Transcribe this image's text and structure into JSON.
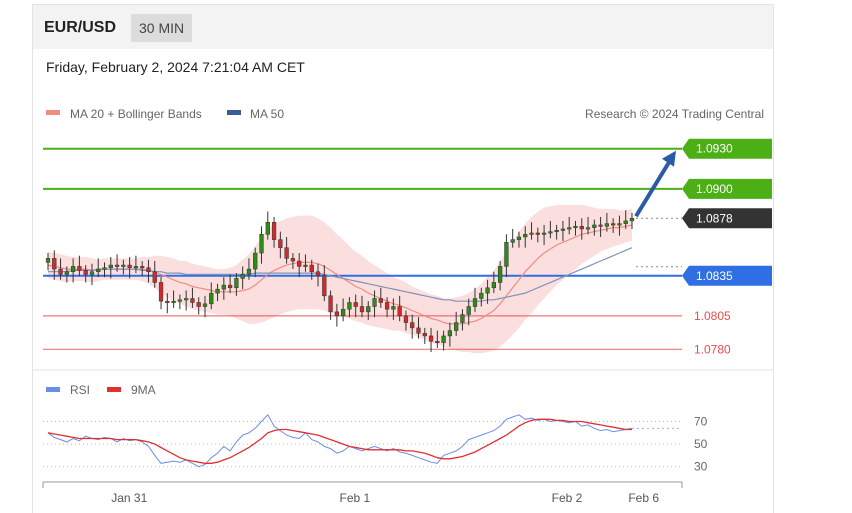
{
  "header": {
    "pair": "EUR/USD",
    "timeframe": "30 MIN",
    "datetime": "Friday, February 2, 2024 7:21:04 AM CET"
  },
  "chart_data": [
    {
      "type": "candlestick",
      "legend": [
        {
          "name": "MA 20 + Bollinger Bands",
          "color": "#f28b82"
        },
        {
          "name": "MA 50",
          "color": "#3b5b9a"
        }
      ],
      "source": "Research © 2024 Trading Central",
      "ylim": [
        1.0772,
        1.0944
      ],
      "levels": [
        {
          "value": 1.093,
          "label": "1.0930",
          "kind": "resistance",
          "color": "#4caf16"
        },
        {
          "value": 1.09,
          "label": "1.0900",
          "kind": "resistance",
          "color": "#4caf16"
        },
        {
          "value": 1.0878,
          "label": "1.0878",
          "kind": "last",
          "color": "#333333"
        },
        {
          "value": 1.0835,
          "label": "1.0835",
          "kind": "pivot",
          "color": "#2f6fe3"
        },
        {
          "value": 1.0805,
          "label": "1.0805",
          "kind": "support",
          "color": "#e64c4c"
        },
        {
          "value": 1.078,
          "label": "1.0780",
          "kind": "support",
          "color": "#e64c4c"
        }
      ],
      "x_ticks": [
        {
          "label": "Jan 31",
          "at": 0.135
        },
        {
          "label": "Feb 1",
          "at": 0.488
        },
        {
          "label": "Feb 2",
          "at": 0.82
        },
        {
          "label": "Feb 6",
          "at": 0.94
        }
      ],
      "closes": [
        1.0848,
        1.084,
        1.0836,
        1.0838,
        1.0842,
        1.0839,
        1.0836,
        1.0838,
        1.084,
        1.0841,
        1.0843,
        1.0842,
        1.0843,
        1.0841,
        1.0842,
        1.0841,
        1.0838,
        1.083,
        1.0816,
        1.0815,
        1.0816,
        1.0817,
        1.0818,
        1.0815,
        1.0812,
        1.0814,
        1.0822,
        1.0825,
        1.0828,
        1.0826,
        1.0833,
        1.0836,
        1.084,
        1.0852,
        1.0866,
        1.0875,
        1.0862,
        1.0856,
        1.0848,
        1.0846,
        1.0842,
        1.0843,
        1.0838,
        1.0835,
        1.082,
        1.0808,
        1.0805,
        1.081,
        1.0815,
        1.0812,
        1.0808,
        1.0812,
        1.0818,
        1.0815,
        1.081,
        1.0812,
        1.0805,
        1.08,
        1.0796,
        1.0792,
        1.079,
        1.0786,
        1.0785,
        1.079,
        1.0794,
        1.08,
        1.0806,
        1.0812,
        1.0818,
        1.0822,
        1.0826,
        1.083,
        1.0842,
        1.086,
        1.0862,
        1.0864,
        1.0866,
        1.0867,
        1.0866,
        1.0867,
        1.0868,
        1.0869,
        1.087,
        1.0871,
        1.0872,
        1.087,
        1.0871,
        1.0873,
        1.0872,
        1.0874,
        1.0873,
        1.0874,
        1.0876,
        1.0878
      ],
      "ma20": [
        1.0843,
        1.0842,
        1.0841,
        1.084,
        1.084,
        1.084,
        1.084,
        1.0839,
        1.0839,
        1.084,
        1.084,
        1.084,
        1.084,
        1.084,
        1.084,
        1.084,
        1.0839,
        1.0838,
        1.0836,
        1.0834,
        1.0832,
        1.083,
        1.0829,
        1.0827,
        1.0826,
        1.0825,
        1.0824,
        1.0823,
        1.0823,
        1.0823,
        1.0823,
        1.0824,
        1.0825,
        1.0828,
        1.0832,
        1.0836,
        1.0839,
        1.0841,
        1.0843,
        1.0844,
        1.0845,
        1.0845,
        1.0845,
        1.0844,
        1.0842,
        1.0839,
        1.0836,
        1.0833,
        1.083,
        1.0827,
        1.0825,
        1.0822,
        1.082,
        1.0818,
        1.0816,
        1.0814,
        1.0813,
        1.0811,
        1.0809,
        1.0807,
        1.0805,
        1.0803,
        1.0802,
        1.08,
        1.0799,
        1.0799,
        1.0799,
        1.08,
        1.0801,
        1.0803,
        1.0806,
        1.0809,
        1.0814,
        1.082,
        1.0826,
        1.0832,
        1.0838,
        1.0843,
        1.0848,
        1.0852,
        1.0855,
        1.0858,
        1.086,
        1.0862,
        1.0864,
        1.0866,
        1.0867,
        1.0868,
        1.0869,
        1.087,
        1.0871,
        1.0871,
        1.0872,
        1.0873
      ],
      "ma50": [
        1.0838,
        1.0838,
        1.0838,
        1.0838,
        1.0839,
        1.0839,
        1.0839,
        1.0839,
        1.084,
        1.084,
        1.084,
        1.084,
        1.084,
        1.084,
        1.084,
        1.0839,
        1.0839,
        1.0838,
        1.0838,
        1.0837,
        1.0837,
        1.0837,
        1.0836,
        1.0836,
        1.0836,
        1.0836,
        1.0836,
        1.0836,
        1.0836,
        1.0836,
        1.0836,
        1.0836,
        1.0836,
        1.0837,
        1.0837,
        1.0837,
        1.0837,
        1.0837,
        1.0837,
        1.0837,
        1.0837,
        1.0837,
        1.0837,
        1.0837,
        1.0836,
        1.0835,
        1.0834,
        1.0833,
        1.0832,
        1.0831,
        1.083,
        1.0829,
        1.0828,
        1.0827,
        1.0826,
        1.0825,
        1.0824,
        1.0823,
        1.0822,
        1.0821,
        1.082,
        1.0819,
        1.0818,
        1.0817,
        1.0817,
        1.0816,
        1.0816,
        1.0816,
        1.0816,
        1.0816,
        1.0817,
        1.0817,
        1.0818,
        1.0819,
        1.082,
        1.0821,
        1.0822,
        1.0824,
        1.0826,
        1.0828,
        1.083,
        1.0832,
        1.0834,
        1.0836,
        1.0838,
        1.084,
        1.0842,
        1.0844,
        1.0846,
        1.0848,
        1.085,
        1.0852,
        1.0854,
        1.0856
      ],
      "band_width": [
        0.001,
        0.001,
        0.001,
        0.001,
        0.0009,
        0.0009,
        0.0009,
        0.0009,
        0.0008,
        0.0008,
        0.0008,
        0.0008,
        0.0008,
        0.0008,
        0.0008,
        0.0009,
        0.001,
        0.0012,
        0.0014,
        0.0015,
        0.0016,
        0.0016,
        0.0017,
        0.0017,
        0.0017,
        0.0017,
        0.0017,
        0.0017,
        0.0017,
        0.0018,
        0.002,
        0.0023,
        0.0026,
        0.0029,
        0.0032,
        0.0034,
        0.0035,
        0.0035,
        0.0035,
        0.0035,
        0.0035,
        0.0035,
        0.0035,
        0.0034,
        0.0033,
        0.0032,
        0.003,
        0.0029,
        0.0027,
        0.0026,
        0.0025,
        0.0024,
        0.0023,
        0.0022,
        0.0021,
        0.002,
        0.0019,
        0.0019,
        0.0018,
        0.0018,
        0.0018,
        0.0018,
        0.0018,
        0.0018,
        0.0019,
        0.002,
        0.0021,
        0.0022,
        0.0024,
        0.0026,
        0.0028,
        0.003,
        0.0032,
        0.0034,
        0.0035,
        0.0036,
        0.0036,
        0.0036,
        0.0035,
        0.0034,
        0.0032,
        0.003,
        0.0028,
        0.0026,
        0.0024,
        0.0022,
        0.002,
        0.0018,
        0.0016,
        0.0015,
        0.0014,
        0.0013,
        0.0012,
        0.0012
      ],
      "projection": {
        "from": 1.0878,
        "to": 1.093
      }
    },
    {
      "type": "line",
      "legend": [
        {
          "name": "RSI",
          "color": "#6a8ee6"
        },
        {
          "name": "9MA",
          "color": "#e03030"
        }
      ],
      "ylim": [
        20,
        82
      ],
      "ref_lines": [
        {
          "value": 70,
          "label": "70"
        },
        {
          "value": 50,
          "label": "50"
        },
        {
          "value": 30,
          "label": "30"
        }
      ],
      "rsi": [
        60,
        56,
        54,
        52,
        55,
        53,
        57,
        55,
        54,
        56,
        55,
        52,
        55,
        53,
        54,
        52,
        48,
        40,
        33,
        34,
        35,
        34,
        36,
        33,
        30,
        32,
        38,
        42,
        48,
        44,
        52,
        58,
        60,
        64,
        70,
        76,
        66,
        62,
        58,
        56,
        55,
        60,
        54,
        52,
        48,
        46,
        42,
        44,
        48,
        46,
        44,
        46,
        48,
        46,
        44,
        46,
        43,
        42,
        40,
        38,
        36,
        34,
        33,
        40,
        42,
        44,
        48,
        54,
        56,
        58,
        60,
        62,
        66,
        72,
        74,
        76,
        72,
        73,
        71,
        72,
        70,
        71,
        70,
        69,
        70,
        66,
        67,
        64,
        62,
        63,
        61,
        62,
        63,
        64
      ],
      "ma9": [
        60,
        59,
        58,
        57,
        56,
        55,
        55,
        55,
        55,
        55,
        55,
        54,
        54,
        54,
        54,
        53,
        52,
        50,
        47,
        44,
        41,
        38,
        36,
        35,
        34,
        33,
        33,
        34,
        36,
        38,
        41,
        44,
        47,
        51,
        55,
        60,
        62,
        63,
        63,
        62,
        61,
        60,
        59,
        58,
        56,
        54,
        52,
        50,
        48,
        47,
        46,
        45,
        45,
        45,
        45,
        45,
        45,
        44,
        44,
        43,
        42,
        40,
        38,
        37,
        37,
        38,
        39,
        41,
        43,
        46,
        49,
        52,
        55,
        58,
        62,
        66,
        69,
        71,
        72,
        72,
        72,
        71,
        71,
        70,
        70,
        70,
        69,
        68,
        67,
        66,
        65,
        64,
        63,
        63
      ]
    }
  ]
}
